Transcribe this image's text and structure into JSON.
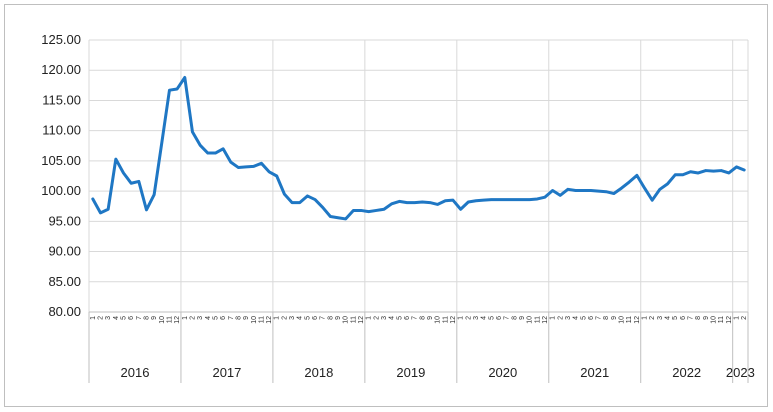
{
  "chart_data": {
    "type": "line",
    "title": "",
    "xlabel": "",
    "ylabel": "",
    "ylim": [
      80,
      125
    ],
    "y_ticks": [
      "80.00",
      "85.00",
      "90.00",
      "95.00",
      "100.00",
      "105.00",
      "110.00",
      "115.00",
      "120.00",
      "125.00"
    ],
    "grid": true,
    "legend": "none",
    "line_color": "#1f77c4",
    "years": [
      "2016",
      "2017",
      "2018",
      "2019",
      "2020",
      "2021",
      "2022",
      "2023"
    ],
    "months_per_year": [
      12,
      12,
      12,
      12,
      12,
      12,
      12,
      2
    ],
    "month_labels": [
      "1",
      "2",
      "3",
      "4",
      "5",
      "6",
      "7",
      "8",
      "9",
      "10",
      "11",
      "12"
    ],
    "series": [
      {
        "values": [
          98.7,
          96.4,
          97.0,
          105.3,
          103.0,
          101.3,
          101.6,
          96.9,
          99.4,
          108.0,
          116.7,
          116.9,
          118.8,
          109.8,
          107.6,
          106.3,
          106.3,
          107.0,
          104.8,
          103.9,
          104.0,
          104.1,
          104.6,
          103.2,
          102.5,
          99.5,
          98.1,
          98.1,
          99.2,
          98.6,
          97.3,
          95.8,
          95.6,
          95.4,
          96.8,
          96.8,
          96.6,
          96.8,
          97.0,
          97.9,
          98.3,
          98.1,
          98.1,
          98.2,
          98.1,
          97.8,
          98.4,
          98.5,
          97.0,
          98.2,
          98.4,
          98.5,
          98.6,
          98.6,
          98.6,
          98.6,
          98.6,
          98.6,
          98.7,
          99.0,
          100.1,
          99.3,
          100.3,
          100.1,
          100.1,
          100.1,
          100.0,
          99.9,
          99.6,
          100.5,
          101.5,
          102.6,
          100.5,
          98.5,
          100.3,
          101.2,
          102.7,
          102.7,
          103.2,
          103.0,
          103.4,
          103.3,
          103.4,
          103.0,
          104.0,
          103.5
        ]
      }
    ]
  }
}
